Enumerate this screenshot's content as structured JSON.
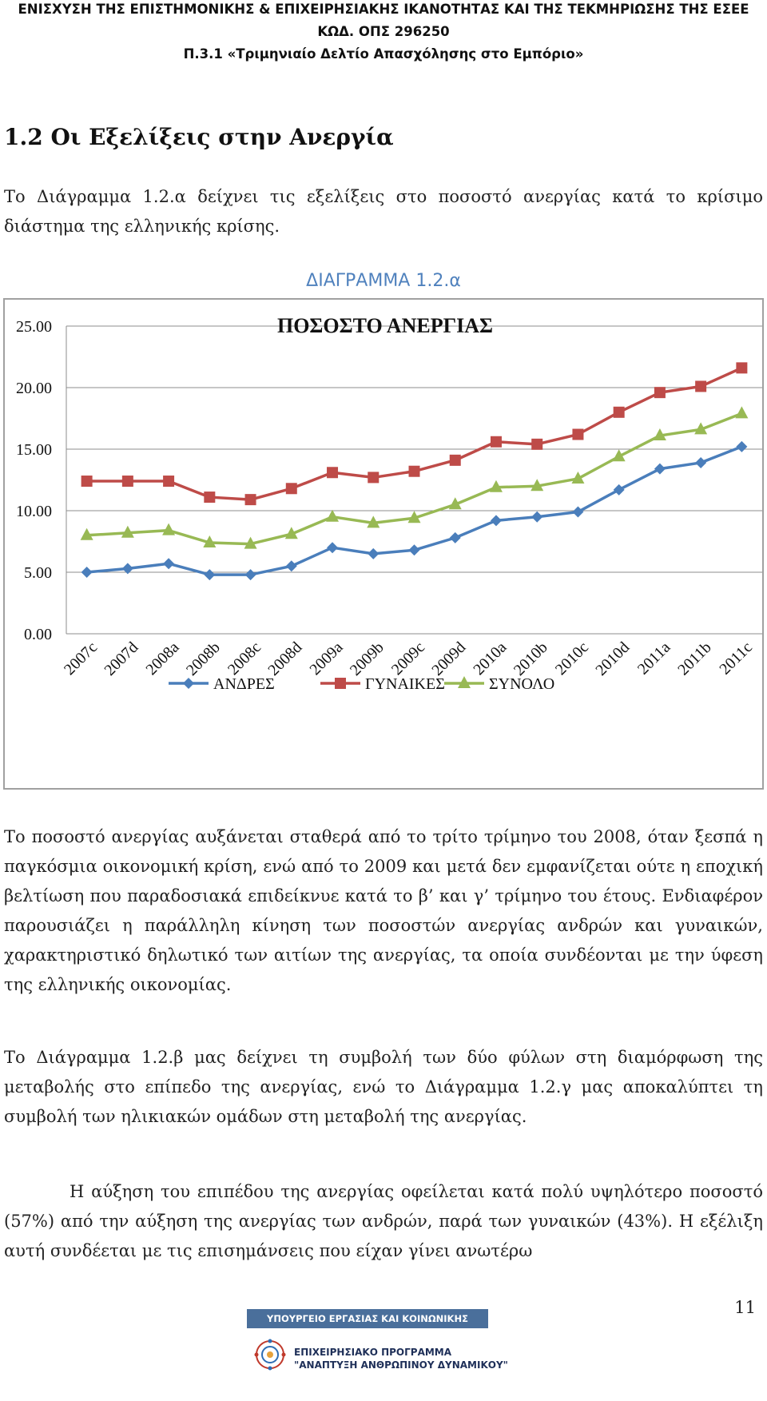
{
  "header": {
    "line1": "ΕΝΙΣΧΥΣΗ ΤΗΣ ΕΠΙΣΤΗΜΟΝΙΚΗΣ & ΕΠΙΧΕΙΡΗΣΙΑΚΗΣ ΙΚΑΝΟΤΗΤΑΣ ΚΑΙ ΤΗΣ ΤΕΚΜΗΡΙΩΣΗΣ ΤΗΣ ΕΣΕΕ",
    "line2": "ΚΩΔ. ΟΠΣ 296250",
    "line3": "Π.3.1 «Τριμηνιαίο Δελτίο Απασχόλησης στο Εμπόριο»"
  },
  "section_title": "1.2  Οι Εξελίξεις στην Ανεργία",
  "paragraphs": {
    "p1": "Το Διάγραμμα 1.2.α δείχνει τις εξελίξεις στο ποσοστό ανεργίας κατά το κρίσιμο διάστημα της ελληνικής κρίσης.",
    "p2": "Το ποσοστό ανεργίας αυξάνεται σταθερά από το τρίτο τρίμηνο του 2008, όταν ξεσπά η παγκόσμια οικονομική κρίση, ενώ από το 2009 και μετά δεν εμφανίζεται ούτε η εποχική βελτίωση που παραδοσιακά επιδείκνυε κατά το β’ και γ’ τρίμηνο του έτους. Ενδιαφέρον παρουσιάζει η παράλληλη κίνηση των ποσοστών ανεργίας ανδρών και γυναικών, χαρακτηριστικό δηλωτικό των αιτίων της ανεργίας, τα οποία συνδέονται με την ύφεση της ελληνικής οικονομίας.",
    "p3": "Το Διάγραμμα 1.2.β μας δείχνει τη συμβολή των δύο φύλων στη διαμόρφωση της μεταβολής στο επίπεδο της ανεργίας, ενώ το Διάγραμμα 1.2.γ μας αποκαλύπτει τη συμβολή των ηλικιακών ομάδων στη μεταβολή της ανεργίας.",
    "p4": "Η αύξηση του επιπέδου της ανεργίας οφείλεται κατά πολύ υψηλότερο ποσοστό (57%) από την αύξηση της ανεργίας των ανδρών, παρά των γυναικών (43%). Η εξέλιξη αυτή συνδέεται με τις επισημάνσεις που είχαν γίνει ανωτέρω"
  },
  "diagram_caption": "ΔΙΑΓΡΑΜΜΑ 1.2.α",
  "chart_data": {
    "type": "line",
    "title": "ΠΟΣΟΣΤΟ ΑΝΕΡΓΙΑΣ",
    "categories": [
      "2007c",
      "2007d",
      "2008a",
      "2008b",
      "2008c",
      "2008d",
      "2009a",
      "2009b",
      "2009c",
      "2009d",
      "2010a",
      "2010b",
      "2010c",
      "2010d",
      "2011a",
      "2011b",
      "2011c"
    ],
    "series": [
      {
        "name": "ΑΝΔΡΕΣ",
        "color": "#4a7ebb",
        "marker": "diamond",
        "values": [
          5.0,
          5.3,
          5.7,
          4.8,
          4.8,
          5.5,
          7.0,
          6.5,
          6.8,
          7.8,
          9.2,
          9.5,
          9.9,
          11.7,
          13.4,
          13.9,
          15.2
        ]
      },
      {
        "name": "ΓΥΝΑΙΚΕΣ",
        "color": "#be4b48",
        "marker": "square",
        "values": [
          12.4,
          12.4,
          12.4,
          11.1,
          10.9,
          11.8,
          13.1,
          12.7,
          13.2,
          14.1,
          15.6,
          15.4,
          16.2,
          18.0,
          19.6,
          20.1,
          21.6
        ]
      },
      {
        "name": "ΣΥΝΟΛΟ",
        "color": "#98b954",
        "marker": "triangle",
        "values": [
          8.0,
          8.2,
          8.4,
          7.4,
          7.3,
          8.1,
          9.5,
          9.0,
          9.4,
          10.5,
          11.9,
          12.0,
          12.6,
          14.4,
          16.1,
          16.6,
          17.9
        ]
      }
    ],
    "y_ticks": [
      "0.00",
      "5.00",
      "10.00",
      "15.00",
      "20.00",
      "25.00"
    ],
    "ylim": [
      0,
      25
    ],
    "grid": true,
    "legend_position": "bottom"
  },
  "footer": {
    "page_number": "11",
    "ministry": "ΥΠΟΥΡΓΕΙΟ ΕΡΓΑΣΙΑΣ ΚΑΙ ΚΟΙΝΩΝΙΚΗΣ ΑΣΦΑΛΙΣΗΣ",
    "program_line1": "ΕΠΙΧΕΙΡΗΣΙΑΚΟ ΠΡΟΓΡΑΜΜΑ",
    "program_line2": "\"ΑΝΑΠΤΥΞΗ ΑΝΘΡΩΠΙΝΟΥ ΔΥΝΑΜΙΚΟΥ\""
  }
}
